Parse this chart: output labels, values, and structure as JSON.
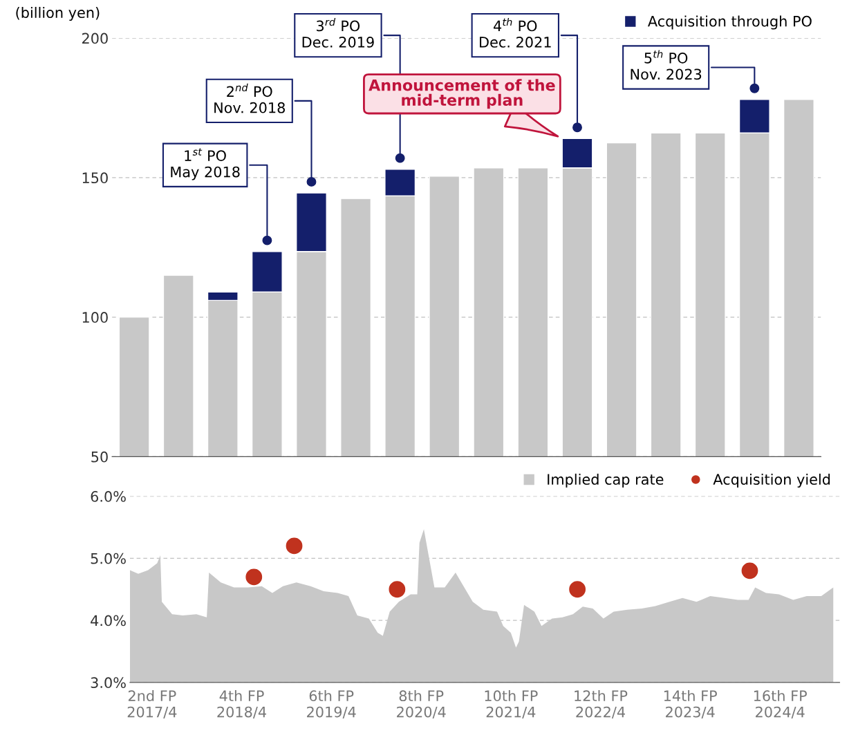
{
  "chart_data": [
    {
      "type": "bar",
      "ylabel": "(billion yen)",
      "categories": [
        null,
        null,
        null,
        null,
        null,
        null,
        null,
        null,
        null,
        null,
        null,
        null,
        null,
        null,
        null,
        null
      ],
      "series": [
        {
          "color": "#c8c8c8",
          "values": [
            100,
            115,
            106,
            109,
            123.5,
            142.5,
            143.5,
            150.5,
            153.5,
            153.5,
            153.5,
            162.5,
            166,
            166,
            166,
            178
          ]
        },
        {
          "name": "Acquisition through PO",
          "color": "#141f6b",
          "values": [
            null,
            null,
            3,
            14.5,
            21,
            null,
            9.5,
            null,
            null,
            null,
            10.5,
            null,
            null,
            null,
            12,
            null
          ],
          "base": [
            null,
            null,
            106,
            109,
            123.5,
            null,
            143.5,
            null,
            null,
            null,
            153.5,
            null,
            null,
            null,
            166,
            null
          ]
        }
      ],
      "ylim": [
        50,
        200
      ],
      "yticks": [
        50,
        100,
        150,
        200
      ],
      "grid": "y",
      "legend": "top right",
      "tick_labels": "y",
      "annotations": [
        "1$^{st}$ PO\nMay 2018",
        "2$^{nd}$ PO\nNov. 2018",
        "3$^{rd}$ PO\nDec. 2019",
        "4$^{th}$ PO\nDec. 2021",
        "5$^{th}$ PO\nNov. 2023",
        "Announcement of the\nmid-term plan"
      ]
    },
    {
      "type": "area",
      "series": [
        {
          "name": "Implied cap rate",
          "color": "#c8c8c8",
          "x": [
            "2017-01-01",
            "2017-02-04",
            "2017-03-16",
            "2017-04-22",
            "2017-05-05",
            "2017-05-11",
            "2017-06-22",
            "2017-08-04",
            "2017-09-29",
            "2017-11-10",
            "2017-11-19",
            "2018-01-06",
            "2018-03-01",
            "2018-04-27",
            "2018-06-22",
            "2018-08-04",
            "2018-09-16",
            "2018-11-10",
            "2019-01-07",
            "2019-03-01",
            "2019-04-27",
            "2019-06-10",
            "2019-07-16",
            "2019-09-01",
            "2019-10-07",
            "2019-10-28",
            "2019-11-25",
            "2020-01-01",
            "2020-02-18",
            "2020-03-16",
            "2020-03-25",
            "2020-04-12",
            "2020-04-27",
            "2020-05-25",
            "2020-07-06",
            "2020-08-19",
            "2020-09-16",
            "2020-10-28",
            "2020-12-10",
            "2021-02-04",
            "2021-03-01",
            "2021-04-01",
            "2021-04-22",
            "2021-05-04",
            "2021-05-25",
            "2021-07-06",
            "2021-08-04",
            "2021-09-16",
            "2021-10-28",
            "2021-12-10",
            "2022-01-19",
            "2022-03-01",
            "2022-04-13",
            "2022-05-25",
            "2022-07-19",
            "2022-09-16",
            "2022-11-10",
            "2023-01-07",
            "2023-03-01",
            "2023-04-27",
            "2023-06-22",
            "2023-08-19",
            "2023-10-13",
            "2023-11-25",
            "2023-12-22",
            "2024-02-04",
            "2024-03-28",
            "2024-05-25",
            "2024-07-19",
            "2024-09-16",
            "2024-11-04"
          ],
          "values": [
            4.81,
            4.75,
            4.81,
            4.92,
            5.05,
            4.3,
            4.1,
            4.08,
            4.1,
            4.05,
            4.77,
            4.61,
            4.53,
            4.53,
            4.55,
            4.44,
            4.55,
            4.61,
            4.55,
            4.47,
            4.44,
            4.39,
            4.08,
            4.03,
            3.8,
            3.75,
            4.14,
            4.3,
            4.42,
            4.42,
            5.25,
            5.47,
            5.14,
            4.53,
            4.53,
            4.77,
            4.58,
            4.3,
            4.17,
            4.14,
            3.91,
            3.8,
            3.56,
            3.66,
            4.25,
            4.14,
            3.91,
            4.03,
            4.05,
            4.1,
            4.22,
            4.19,
            4.03,
            4.14,
            4.17,
            4.19,
            4.23,
            4.3,
            4.36,
            4.3,
            4.39,
            4.36,
            4.33,
            4.33,
            4.53,
            4.44,
            4.42,
            4.33,
            4.39,
            4.39,
            4.53
          ]
        },
        {
          "type": "scatter",
          "marker": "circle",
          "name": "Acquisition yield",
          "color": "#c0321e",
          "x": [
            "2018-05-21",
            "2018-11-01",
            "2019-12-25",
            "2021-12-28",
            "2023-11-30"
          ],
          "values": [
            4.7,
            5.2,
            4.5,
            4.5,
            4.8
          ]
        }
      ],
      "xlim": [
        "2017-01-01",
        "2024-11-30"
      ],
      "xticks": [
        {
          "value": "2017-04-01",
          "label": "2nd FP\n2017/4"
        },
        {
          "value": "2018-04-01",
          "label": "4th FP\n2018/4"
        },
        {
          "value": "2019-04-01",
          "label": "6th FP\n2019/4"
        },
        {
          "value": "2020-04-01",
          "label": "8th FP\n2020/4"
        },
        {
          "value": "2021-04-01",
          "label": "10th FP\n2021/4"
        },
        {
          "value": "2022-04-01",
          "label": "12th FP\n2022/4"
        },
        {
          "value": "2023-04-01",
          "label": "14th FP\n2023/4"
        },
        {
          "value": "2024-04-01",
          "label": "16th FP\n2024/4"
        }
      ],
      "ylim": [
        3,
        6
      ],
      "yticks": [
        {
          "value": 3,
          "label": "3.0%"
        },
        {
          "value": 4,
          "label": "4.0%"
        },
        {
          "value": 5,
          "label": "5.0%"
        },
        {
          "value": 6,
          "label": "6.0%"
        }
      ],
      "grid": "y",
      "legend": "top right"
    }
  ]
}
